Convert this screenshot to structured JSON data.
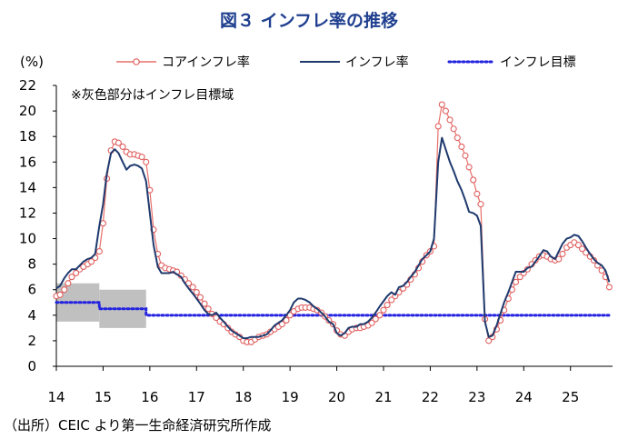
{
  "chart_data": {
    "type": "line",
    "title": "図３ インフレ率の推移",
    "ylabel": "(%)",
    "note": "※灰色部分はインフレ目標域",
    "source": "（出所）CEIC より第一生命経済研究所作成",
    "ylim": [
      0,
      22
    ],
    "yticks": [
      0,
      2,
      4,
      6,
      8,
      10,
      12,
      14,
      16,
      18,
      20,
      22
    ],
    "xlim": [
      2014.0,
      2025.9
    ],
    "xtick_labels": [
      "14",
      "15",
      "16",
      "17",
      "18",
      "19",
      "20",
      "21",
      "22",
      "23",
      "24",
      "25"
    ],
    "xtick_values": [
      2014,
      2015,
      2016,
      2017,
      2018,
      2019,
      2020,
      2021,
      2022,
      2023,
      2024,
      2025
    ],
    "grid": false,
    "legend_placement": "top",
    "target_band": [
      {
        "x0": 2014.0,
        "x1": 2014.92,
        "low": 3.5,
        "high": 6.5
      },
      {
        "x0": 2014.92,
        "x1": 2015.92,
        "low": 3.0,
        "high": 6.0
      }
    ],
    "series": [
      {
        "name": "コアインフレ率",
        "style": "line-markers",
        "color": "#e8706a",
        "marker_color": "#e06060",
        "points": [
          [
            2014.0,
            5.5
          ],
          [
            2014.08,
            5.6
          ],
          [
            2014.17,
            6.0
          ],
          [
            2014.25,
            6.5
          ],
          [
            2014.33,
            7.0
          ],
          [
            2014.42,
            7.3
          ],
          [
            2014.5,
            7.6
          ],
          [
            2014.58,
            7.8
          ],
          [
            2014.67,
            8.0
          ],
          [
            2014.75,
            8.2
          ],
          [
            2014.83,
            8.5
          ],
          [
            2014.92,
            9.0
          ],
          [
            2015.0,
            11.2
          ],
          [
            2015.08,
            14.7
          ],
          [
            2015.17,
            16.9
          ],
          [
            2015.25,
            17.6
          ],
          [
            2015.33,
            17.5
          ],
          [
            2015.42,
            17.2
          ],
          [
            2015.5,
            16.8
          ],
          [
            2015.58,
            16.6
          ],
          [
            2015.67,
            16.6
          ],
          [
            2015.75,
            16.5
          ],
          [
            2015.83,
            16.4
          ],
          [
            2015.92,
            16.0
          ],
          [
            2016.0,
            13.8
          ],
          [
            2016.08,
            10.7
          ],
          [
            2016.17,
            8.8
          ],
          [
            2016.25,
            7.9
          ],
          [
            2016.33,
            7.7
          ],
          [
            2016.42,
            7.6
          ],
          [
            2016.5,
            7.5
          ],
          [
            2016.58,
            7.4
          ],
          [
            2016.67,
            7.1
          ],
          [
            2016.75,
            6.8
          ],
          [
            2016.83,
            6.5
          ],
          [
            2016.92,
            6.2
          ],
          [
            2017.0,
            5.8
          ],
          [
            2017.08,
            5.4
          ],
          [
            2017.17,
            4.9
          ],
          [
            2017.25,
            4.5
          ],
          [
            2017.33,
            4.1
          ],
          [
            2017.42,
            3.8
          ],
          [
            2017.5,
            3.5
          ],
          [
            2017.58,
            3.3
          ],
          [
            2017.67,
            3.0
          ],
          [
            2017.75,
            2.7
          ],
          [
            2017.83,
            2.5
          ],
          [
            2017.92,
            2.3
          ],
          [
            2018.0,
            2.0
          ],
          [
            2018.08,
            1.9
          ],
          [
            2018.17,
            1.9
          ],
          [
            2018.25,
            2.1
          ],
          [
            2018.33,
            2.3
          ],
          [
            2018.42,
            2.4
          ],
          [
            2018.5,
            2.5
          ],
          [
            2018.58,
            2.7
          ],
          [
            2018.67,
            2.9
          ],
          [
            2018.75,
            3.1
          ],
          [
            2018.83,
            3.3
          ],
          [
            2018.92,
            3.6
          ],
          [
            2019.0,
            4.0
          ],
          [
            2019.08,
            4.3
          ],
          [
            2019.17,
            4.5
          ],
          [
            2019.25,
            4.6
          ],
          [
            2019.33,
            4.6
          ],
          [
            2019.42,
            4.6
          ],
          [
            2019.5,
            4.5
          ],
          [
            2019.58,
            4.4
          ],
          [
            2019.67,
            4.2
          ],
          [
            2019.75,
            3.9
          ],
          [
            2019.83,
            3.6
          ],
          [
            2019.92,
            3.3
          ],
          [
            2020.0,
            2.8
          ],
          [
            2020.08,
            2.5
          ],
          [
            2020.17,
            2.4
          ],
          [
            2020.25,
            2.7
          ],
          [
            2020.33,
            2.9
          ],
          [
            2020.42,
            3.0
          ],
          [
            2020.5,
            3.0
          ],
          [
            2020.58,
            3.1
          ],
          [
            2020.67,
            3.2
          ],
          [
            2020.75,
            3.4
          ],
          [
            2020.83,
            3.7
          ],
          [
            2020.92,
            4.0
          ],
          [
            2021.0,
            4.4
          ],
          [
            2021.08,
            4.8
          ],
          [
            2021.17,
            5.2
          ],
          [
            2021.25,
            5.5
          ],
          [
            2021.33,
            5.8
          ],
          [
            2021.42,
            6.1
          ],
          [
            2021.5,
            6.4
          ],
          [
            2021.58,
            6.8
          ],
          [
            2021.67,
            7.2
          ],
          [
            2021.75,
            7.7
          ],
          [
            2021.83,
            8.2
          ],
          [
            2021.92,
            8.7
          ],
          [
            2022.0,
            9.0
          ],
          [
            2022.08,
            9.4
          ],
          [
            2022.17,
            18.8
          ],
          [
            2022.25,
            20.5
          ],
          [
            2022.33,
            20.0
          ],
          [
            2022.42,
            19.3
          ],
          [
            2022.5,
            18.6
          ],
          [
            2022.58,
            17.9
          ],
          [
            2022.67,
            17.2
          ],
          [
            2022.75,
            16.5
          ],
          [
            2022.83,
            15.6
          ],
          [
            2022.92,
            14.6
          ],
          [
            2023.0,
            13.5
          ],
          [
            2023.08,
            12.7
          ],
          [
            2023.17,
            3.7
          ],
          [
            2023.25,
            2.0
          ],
          [
            2023.33,
            2.3
          ],
          [
            2023.42,
            2.9
          ],
          [
            2023.5,
            3.6
          ],
          [
            2023.58,
            4.4
          ],
          [
            2023.67,
            5.3
          ],
          [
            2023.75,
            6.0
          ],
          [
            2023.83,
            6.6
          ],
          [
            2023.92,
            7.0
          ],
          [
            2024.0,
            7.3
          ],
          [
            2024.08,
            7.6
          ],
          [
            2024.17,
            8.0
          ],
          [
            2024.25,
            8.3
          ],
          [
            2024.33,
            8.6
          ],
          [
            2024.42,
            8.7
          ],
          [
            2024.5,
            8.6
          ],
          [
            2024.58,
            8.4
          ],
          [
            2024.67,
            8.3
          ],
          [
            2024.75,
            8.4
          ],
          [
            2024.83,
            8.8
          ],
          [
            2024.92,
            9.3
          ],
          [
            2025.0,
            9.5
          ],
          [
            2025.08,
            9.7
          ],
          [
            2025.17,
            9.5
          ],
          [
            2025.25,
            9.2
          ],
          [
            2025.33,
            8.9
          ],
          [
            2025.42,
            8.6
          ],
          [
            2025.5,
            8.3
          ],
          [
            2025.58,
            7.9
          ],
          [
            2025.67,
            7.5
          ],
          [
            2025.75,
            7.0
          ],
          [
            2025.83,
            6.2
          ]
        ]
      },
      {
        "name": "インフレ率",
        "style": "line",
        "color": "#1f3a6e",
        "points": [
          [
            2014.0,
            6.1
          ],
          [
            2014.08,
            6.3
          ],
          [
            2014.17,
            6.9
          ],
          [
            2014.25,
            7.3
          ],
          [
            2014.33,
            7.6
          ],
          [
            2014.42,
            7.6
          ],
          [
            2014.5,
            7.9
          ],
          [
            2014.58,
            8.2
          ],
          [
            2014.67,
            8.4
          ],
          [
            2014.75,
            8.5
          ],
          [
            2014.83,
            8.8
          ],
          [
            2014.92,
            11.0
          ],
          [
            2015.0,
            12.7
          ],
          [
            2015.08,
            15.1
          ],
          [
            2015.17,
            16.7
          ],
          [
            2015.25,
            17.0
          ],
          [
            2015.33,
            16.7
          ],
          [
            2015.42,
            16.0
          ],
          [
            2015.5,
            15.4
          ],
          [
            2015.58,
            15.7
          ],
          [
            2015.67,
            15.8
          ],
          [
            2015.75,
            15.7
          ],
          [
            2015.83,
            15.5
          ],
          [
            2015.92,
            14.5
          ],
          [
            2016.0,
            12.0
          ],
          [
            2016.08,
            9.5
          ],
          [
            2016.17,
            7.8
          ],
          [
            2016.25,
            7.3
          ],
          [
            2016.33,
            7.3
          ],
          [
            2016.42,
            7.3
          ],
          [
            2016.5,
            7.4
          ],
          [
            2016.58,
            7.2
          ],
          [
            2016.67,
            7.0
          ],
          [
            2016.75,
            6.5
          ],
          [
            2016.83,
            6.1
          ],
          [
            2016.92,
            5.7
          ],
          [
            2017.0,
            5.3
          ],
          [
            2017.08,
            4.9
          ],
          [
            2017.17,
            4.4
          ],
          [
            2017.25,
            4.1
          ],
          [
            2017.33,
            4.0
          ],
          [
            2017.42,
            4.2
          ],
          [
            2017.5,
            3.8
          ],
          [
            2017.58,
            3.5
          ],
          [
            2017.67,
            3.1
          ],
          [
            2017.75,
            2.8
          ],
          [
            2017.83,
            2.6
          ],
          [
            2017.92,
            2.4
          ],
          [
            2018.0,
            2.2
          ],
          [
            2018.08,
            2.2
          ],
          [
            2018.17,
            2.3
          ],
          [
            2018.25,
            2.3
          ],
          [
            2018.33,
            2.3
          ],
          [
            2018.42,
            2.4
          ],
          [
            2018.5,
            2.5
          ],
          [
            2018.58,
            2.8
          ],
          [
            2018.67,
            3.2
          ],
          [
            2018.75,
            3.4
          ],
          [
            2018.83,
            3.6
          ],
          [
            2018.92,
            4.0
          ],
          [
            2019.0,
            4.4
          ],
          [
            2019.08,
            5.0
          ],
          [
            2019.17,
            5.3
          ],
          [
            2019.25,
            5.3
          ],
          [
            2019.33,
            5.2
          ],
          [
            2019.42,
            5.0
          ],
          [
            2019.5,
            4.7
          ],
          [
            2019.58,
            4.5
          ],
          [
            2019.67,
            4.2
          ],
          [
            2019.75,
            3.9
          ],
          [
            2019.83,
            3.5
          ],
          [
            2019.92,
            3.3
          ],
          [
            2020.0,
            2.6
          ],
          [
            2020.08,
            2.4
          ],
          [
            2020.17,
            2.6
          ],
          [
            2020.25,
            3.0
          ],
          [
            2020.33,
            3.1
          ],
          [
            2020.42,
            3.1
          ],
          [
            2020.5,
            3.3
          ],
          [
            2020.58,
            3.3
          ],
          [
            2020.67,
            3.5
          ],
          [
            2020.75,
            3.8
          ],
          [
            2020.83,
            4.2
          ],
          [
            2020.92,
            4.7
          ],
          [
            2021.0,
            5.1
          ],
          [
            2021.08,
            5.5
          ],
          [
            2021.17,
            5.8
          ],
          [
            2021.25,
            5.6
          ],
          [
            2021.33,
            6.2
          ],
          [
            2021.42,
            6.3
          ],
          [
            2021.5,
            6.6
          ],
          [
            2021.58,
            7.0
          ],
          [
            2021.67,
            7.4
          ],
          [
            2021.75,
            7.9
          ],
          [
            2021.83,
            8.4
          ],
          [
            2021.92,
            8.7
          ],
          [
            2022.0,
            9.0
          ],
          [
            2022.08,
            10.0
          ],
          [
            2022.17,
            16.0
          ],
          [
            2022.25,
            17.9
          ],
          [
            2022.33,
            17.0
          ],
          [
            2022.42,
            16.0
          ],
          [
            2022.5,
            15.3
          ],
          [
            2022.58,
            14.5
          ],
          [
            2022.67,
            13.8
          ],
          [
            2022.75,
            13.0
          ],
          [
            2022.83,
            12.1
          ],
          [
            2022.92,
            12.0
          ],
          [
            2023.0,
            11.8
          ],
          [
            2023.08,
            11.0
          ],
          [
            2023.17,
            3.5
          ],
          [
            2023.25,
            2.3
          ],
          [
            2023.33,
            2.4
          ],
          [
            2023.42,
            3.2
          ],
          [
            2023.5,
            4.1
          ],
          [
            2023.58,
            5.0
          ],
          [
            2023.67,
            5.8
          ],
          [
            2023.75,
            6.6
          ],
          [
            2023.83,
            7.4
          ],
          [
            2023.92,
            7.4
          ],
          [
            2024.0,
            7.4
          ],
          [
            2024.08,
            7.7
          ],
          [
            2024.17,
            7.8
          ],
          [
            2024.25,
            8.2
          ],
          [
            2024.33,
            8.6
          ],
          [
            2024.42,
            9.1
          ],
          [
            2024.5,
            9.0
          ],
          [
            2024.58,
            8.6
          ],
          [
            2024.67,
            8.4
          ],
          [
            2024.75,
            9.0
          ],
          [
            2024.83,
            9.6
          ],
          [
            2024.92,
            10.0
          ],
          [
            2025.0,
            10.1
          ],
          [
            2025.08,
            10.3
          ],
          [
            2025.17,
            10.2
          ],
          [
            2025.25,
            9.8
          ],
          [
            2025.33,
            9.3
          ],
          [
            2025.42,
            8.8
          ],
          [
            2025.5,
            8.4
          ],
          [
            2025.58,
            8.1
          ],
          [
            2025.67,
            7.9
          ],
          [
            2025.75,
            7.5
          ],
          [
            2025.83,
            6.6
          ]
        ]
      },
      {
        "name": "インフレ目標",
        "style": "dotted",
        "color": "#2323e0",
        "points": [
          [
            2014.0,
            5.0
          ],
          [
            2014.92,
            5.0
          ],
          [
            2014.92,
            4.5
          ],
          [
            2015.92,
            4.5
          ],
          [
            2015.92,
            4.0
          ],
          [
            2025.83,
            4.0
          ]
        ]
      }
    ]
  }
}
